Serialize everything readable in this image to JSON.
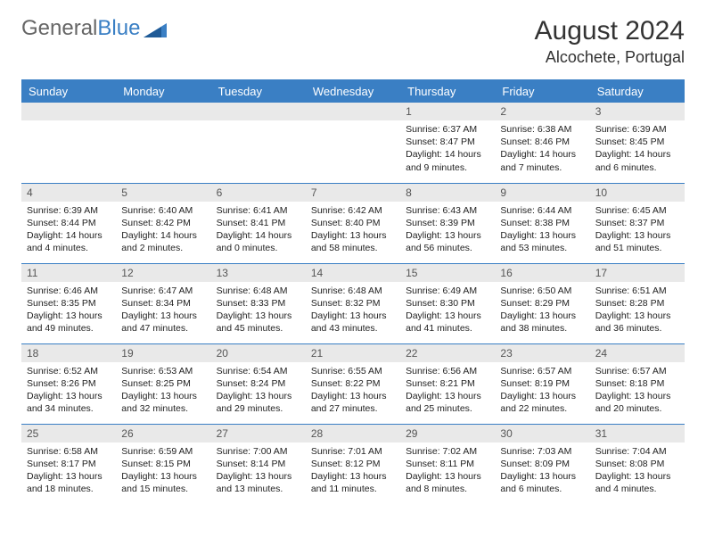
{
  "brand": {
    "part1": "General",
    "part2": "Blue"
  },
  "title": "August 2024",
  "location": "Alcochete, Portugal",
  "colors": {
    "header_bg": "#3a7fc4",
    "header_text": "#ffffff",
    "daynum_bg": "#e9e9e9",
    "daynum_text": "#555555",
    "body_text": "#222222",
    "rule": "#3a7fc4",
    "page_bg": "#ffffff"
  },
  "typography": {
    "title_fontsize": 30,
    "location_fontsize": 18,
    "dayheader_fontsize": 13,
    "cell_fontsize": 10.5,
    "daynum_fontsize": 12
  },
  "day_headers": [
    "Sunday",
    "Monday",
    "Tuesday",
    "Wednesday",
    "Thursday",
    "Friday",
    "Saturday"
  ],
  "weeks": [
    [
      {
        "n": "",
        "sunrise": "",
        "sunset": "",
        "daylight": ""
      },
      {
        "n": "",
        "sunrise": "",
        "sunset": "",
        "daylight": ""
      },
      {
        "n": "",
        "sunrise": "",
        "sunset": "",
        "daylight": ""
      },
      {
        "n": "",
        "sunrise": "",
        "sunset": "",
        "daylight": ""
      },
      {
        "n": "1",
        "sunrise": "Sunrise: 6:37 AM",
        "sunset": "Sunset: 8:47 PM",
        "daylight": "Daylight: 14 hours and 9 minutes."
      },
      {
        "n": "2",
        "sunrise": "Sunrise: 6:38 AM",
        "sunset": "Sunset: 8:46 PM",
        "daylight": "Daylight: 14 hours and 7 minutes."
      },
      {
        "n": "3",
        "sunrise": "Sunrise: 6:39 AM",
        "sunset": "Sunset: 8:45 PM",
        "daylight": "Daylight: 14 hours and 6 minutes."
      }
    ],
    [
      {
        "n": "4",
        "sunrise": "Sunrise: 6:39 AM",
        "sunset": "Sunset: 8:44 PM",
        "daylight": "Daylight: 14 hours and 4 minutes."
      },
      {
        "n": "5",
        "sunrise": "Sunrise: 6:40 AM",
        "sunset": "Sunset: 8:42 PM",
        "daylight": "Daylight: 14 hours and 2 minutes."
      },
      {
        "n": "6",
        "sunrise": "Sunrise: 6:41 AM",
        "sunset": "Sunset: 8:41 PM",
        "daylight": "Daylight: 14 hours and 0 minutes."
      },
      {
        "n": "7",
        "sunrise": "Sunrise: 6:42 AM",
        "sunset": "Sunset: 8:40 PM",
        "daylight": "Daylight: 13 hours and 58 minutes."
      },
      {
        "n": "8",
        "sunrise": "Sunrise: 6:43 AM",
        "sunset": "Sunset: 8:39 PM",
        "daylight": "Daylight: 13 hours and 56 minutes."
      },
      {
        "n": "9",
        "sunrise": "Sunrise: 6:44 AM",
        "sunset": "Sunset: 8:38 PM",
        "daylight": "Daylight: 13 hours and 53 minutes."
      },
      {
        "n": "10",
        "sunrise": "Sunrise: 6:45 AM",
        "sunset": "Sunset: 8:37 PM",
        "daylight": "Daylight: 13 hours and 51 minutes."
      }
    ],
    [
      {
        "n": "11",
        "sunrise": "Sunrise: 6:46 AM",
        "sunset": "Sunset: 8:35 PM",
        "daylight": "Daylight: 13 hours and 49 minutes."
      },
      {
        "n": "12",
        "sunrise": "Sunrise: 6:47 AM",
        "sunset": "Sunset: 8:34 PM",
        "daylight": "Daylight: 13 hours and 47 minutes."
      },
      {
        "n": "13",
        "sunrise": "Sunrise: 6:48 AM",
        "sunset": "Sunset: 8:33 PM",
        "daylight": "Daylight: 13 hours and 45 minutes."
      },
      {
        "n": "14",
        "sunrise": "Sunrise: 6:48 AM",
        "sunset": "Sunset: 8:32 PM",
        "daylight": "Daylight: 13 hours and 43 minutes."
      },
      {
        "n": "15",
        "sunrise": "Sunrise: 6:49 AM",
        "sunset": "Sunset: 8:30 PM",
        "daylight": "Daylight: 13 hours and 41 minutes."
      },
      {
        "n": "16",
        "sunrise": "Sunrise: 6:50 AM",
        "sunset": "Sunset: 8:29 PM",
        "daylight": "Daylight: 13 hours and 38 minutes."
      },
      {
        "n": "17",
        "sunrise": "Sunrise: 6:51 AM",
        "sunset": "Sunset: 8:28 PM",
        "daylight": "Daylight: 13 hours and 36 minutes."
      }
    ],
    [
      {
        "n": "18",
        "sunrise": "Sunrise: 6:52 AM",
        "sunset": "Sunset: 8:26 PM",
        "daylight": "Daylight: 13 hours and 34 minutes."
      },
      {
        "n": "19",
        "sunrise": "Sunrise: 6:53 AM",
        "sunset": "Sunset: 8:25 PM",
        "daylight": "Daylight: 13 hours and 32 minutes."
      },
      {
        "n": "20",
        "sunrise": "Sunrise: 6:54 AM",
        "sunset": "Sunset: 8:24 PM",
        "daylight": "Daylight: 13 hours and 29 minutes."
      },
      {
        "n": "21",
        "sunrise": "Sunrise: 6:55 AM",
        "sunset": "Sunset: 8:22 PM",
        "daylight": "Daylight: 13 hours and 27 minutes."
      },
      {
        "n": "22",
        "sunrise": "Sunrise: 6:56 AM",
        "sunset": "Sunset: 8:21 PM",
        "daylight": "Daylight: 13 hours and 25 minutes."
      },
      {
        "n": "23",
        "sunrise": "Sunrise: 6:57 AM",
        "sunset": "Sunset: 8:19 PM",
        "daylight": "Daylight: 13 hours and 22 minutes."
      },
      {
        "n": "24",
        "sunrise": "Sunrise: 6:57 AM",
        "sunset": "Sunset: 8:18 PM",
        "daylight": "Daylight: 13 hours and 20 minutes."
      }
    ],
    [
      {
        "n": "25",
        "sunrise": "Sunrise: 6:58 AM",
        "sunset": "Sunset: 8:17 PM",
        "daylight": "Daylight: 13 hours and 18 minutes."
      },
      {
        "n": "26",
        "sunrise": "Sunrise: 6:59 AM",
        "sunset": "Sunset: 8:15 PM",
        "daylight": "Daylight: 13 hours and 15 minutes."
      },
      {
        "n": "27",
        "sunrise": "Sunrise: 7:00 AM",
        "sunset": "Sunset: 8:14 PM",
        "daylight": "Daylight: 13 hours and 13 minutes."
      },
      {
        "n": "28",
        "sunrise": "Sunrise: 7:01 AM",
        "sunset": "Sunset: 8:12 PM",
        "daylight": "Daylight: 13 hours and 11 minutes."
      },
      {
        "n": "29",
        "sunrise": "Sunrise: 7:02 AM",
        "sunset": "Sunset: 8:11 PM",
        "daylight": "Daylight: 13 hours and 8 minutes."
      },
      {
        "n": "30",
        "sunrise": "Sunrise: 7:03 AM",
        "sunset": "Sunset: 8:09 PM",
        "daylight": "Daylight: 13 hours and 6 minutes."
      },
      {
        "n": "31",
        "sunrise": "Sunrise: 7:04 AM",
        "sunset": "Sunset: 8:08 PM",
        "daylight": "Daylight: 13 hours and 4 minutes."
      }
    ]
  ]
}
